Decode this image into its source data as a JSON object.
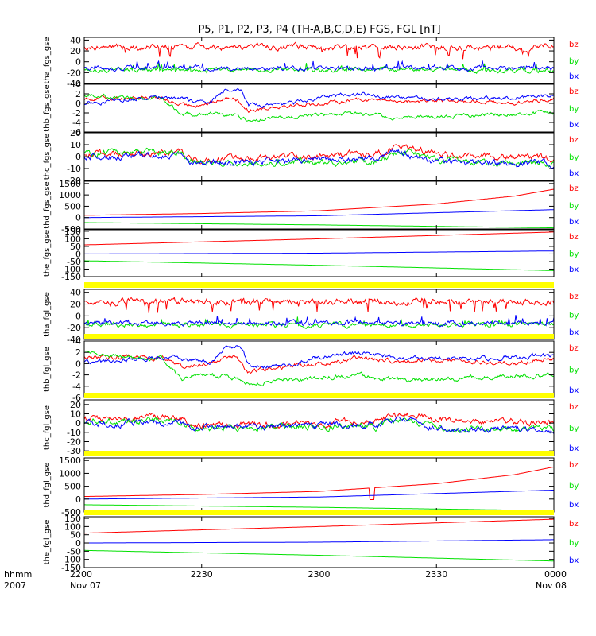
{
  "title": "P5, P1, P2, P3, P4 (TH-A,B,C,D,E) FGS, FGL [nT]",
  "colors": {
    "bx": "#0000ff",
    "by": "#00e000",
    "bz": "#ff0000",
    "gap": "#ffff00",
    "axis": "#000000"
  },
  "time_axis": {
    "label_line1": "hhmm",
    "label_line2": "2007",
    "ticks": [
      {
        "value": 0,
        "line1": "2200",
        "line2": "Nov 07"
      },
      {
        "value": 30,
        "line1": "2230",
        "line2": ""
      },
      {
        "value": 60,
        "line1": "2300",
        "line2": ""
      },
      {
        "value": 90,
        "line1": "2330",
        "line2": ""
      },
      {
        "value": 120,
        "line1": "0000",
        "line2": "Nov 08"
      }
    ],
    "range_minutes": [
      0,
      120
    ]
  },
  "chart_data": [
    {
      "type": "line",
      "ylabel": "tha_fgs_gse",
      "ylim": [
        -40,
        45
      ],
      "yticks": [
        -40,
        -20,
        0,
        20,
        40
      ],
      "legend": [
        "bz",
        "by",
        "bx"
      ],
      "gap_before": false,
      "series": [
        {
          "name": "bz",
          "level": 27,
          "noise": 4,
          "var": "burst"
        },
        {
          "name": "by",
          "level": -15,
          "noise": 3,
          "var": "spiky"
        },
        {
          "name": "bx",
          "level": -12,
          "noise": 3,
          "var": "spiky"
        }
      ]
    },
    {
      "type": "line",
      "ylabel": "thb_fgs_gse",
      "ylim": [
        -6,
        4
      ],
      "yticks": [
        -6,
        -4,
        -2,
        0,
        2,
        4
      ],
      "legend": [
        "bz",
        "by",
        "bx"
      ],
      "gap_before": false,
      "series": [
        {
          "name": "bz",
          "knots": [
            [
              0,
              1
            ],
            [
              15,
              1.3
            ],
            [
              20,
              1
            ],
            [
              25,
              -0.5
            ],
            [
              32,
              0
            ],
            [
              38,
              1.5
            ],
            [
              42,
              -1.5
            ],
            [
              50,
              -0.5
            ],
            [
              62,
              0
            ],
            [
              70,
              1
            ],
            [
              80,
              0.5
            ],
            [
              100,
              0.5
            ],
            [
              110,
              0
            ],
            [
              120,
              1
            ]
          ],
          "noise": 0.3,
          "var": "none"
        },
        {
          "name": "by",
          "knots": [
            [
              0,
              2
            ],
            [
              10,
              1.2
            ],
            [
              20,
              1
            ],
            [
              25,
              -2.5
            ],
            [
              32,
              -2
            ],
            [
              38,
              -2.5
            ],
            [
              42,
              -3.5
            ],
            [
              50,
              -3
            ],
            [
              62,
              -2.5
            ],
            [
              70,
              -2
            ],
            [
              80,
              -3
            ],
            [
              100,
              -2.5
            ],
            [
              120,
              -2
            ]
          ],
          "noise": 0.3,
          "var": "none"
        },
        {
          "name": "bx",
          "knots": [
            [
              0,
              0
            ],
            [
              15,
              1
            ],
            [
              20,
              1.2
            ],
            [
              25,
              1
            ],
            [
              32,
              0
            ],
            [
              36,
              3
            ],
            [
              40,
              3
            ],
            [
              42,
              -0.5
            ],
            [
              50,
              -0.5
            ],
            [
              62,
              1.5
            ],
            [
              70,
              2
            ],
            [
              80,
              1
            ],
            [
              100,
              1
            ],
            [
              120,
              1.5
            ]
          ],
          "noise": 0.3,
          "var": "none"
        }
      ]
    },
    {
      "type": "line",
      "ylabel": "thc_fgs_gse",
      "ylim": [
        -20,
        20
      ],
      "yticks": [
        -20,
        -10,
        0,
        10,
        20
      ],
      "legend": [
        "bz",
        "by",
        "bx"
      ],
      "gap_before": false,
      "series": [
        {
          "name": "bz",
          "knots": [
            [
              0,
              2
            ],
            [
              25,
              3
            ],
            [
              27,
              -3
            ],
            [
              50,
              0
            ],
            [
              75,
              2
            ],
            [
              80,
              7
            ],
            [
              85,
              7
            ],
            [
              90,
              2
            ],
            [
              120,
              -2
            ]
          ],
          "noise": 2,
          "var": "none"
        },
        {
          "name": "by",
          "knots": [
            [
              0,
              3
            ],
            [
              25,
              4
            ],
            [
              27,
              -5
            ],
            [
              50,
              -4
            ],
            [
              75,
              -4
            ],
            [
              80,
              5
            ],
            [
              90,
              -3
            ],
            [
              120,
              -7
            ]
          ],
          "noise": 2,
          "var": "none"
        },
        {
          "name": "bx",
          "knots": [
            [
              0,
              0
            ],
            [
              25,
              0
            ],
            [
              27,
              -5
            ],
            [
              50,
              -3
            ],
            [
              75,
              -2
            ],
            [
              80,
              5
            ],
            [
              90,
              -5
            ],
            [
              120,
              -6
            ]
          ],
          "noise": 2,
          "var": "none"
        }
      ]
    },
    {
      "type": "line",
      "ylabel": "thd_fgs_gse",
      "ylim": [
        -500,
        1600
      ],
      "yticks": [
        -500,
        0,
        500,
        1000,
        1500
      ],
      "legend": [
        "bz",
        "by",
        "bx"
      ],
      "gap_before": false,
      "series": [
        {
          "name": "bz",
          "knots": [
            [
              0,
              100
            ],
            [
              30,
              180
            ],
            [
              60,
              300
            ],
            [
              90,
              600
            ],
            [
              110,
              950
            ],
            [
              120,
              1250
            ]
          ],
          "noise": 0,
          "var": "none"
        },
        {
          "name": "by",
          "knots": [
            [
              0,
              -220
            ],
            [
              60,
              -320
            ],
            [
              120,
              -450
            ]
          ],
          "noise": 0,
          "var": "none"
        },
        {
          "name": "bx",
          "knots": [
            [
              0,
              0
            ],
            [
              60,
              80
            ],
            [
              120,
              350
            ]
          ],
          "noise": 0,
          "var": "none"
        }
      ]
    },
    {
      "type": "line",
      "ylabel": "the_fgs_gse",
      "ylim": [
        -150,
        160
      ],
      "yticks": [
        -150,
        -100,
        -50,
        0,
        50,
        100,
        150
      ],
      "legend": [
        "bz",
        "by",
        "bx"
      ],
      "gap_before": false,
      "series": [
        {
          "name": "bz",
          "knots": [
            [
              0,
              60
            ],
            [
              60,
              100
            ],
            [
              120,
              145
            ]
          ],
          "noise": 0,
          "var": "none"
        },
        {
          "name": "by",
          "knots": [
            [
              0,
              -45
            ],
            [
              60,
              -75
            ],
            [
              120,
              -110
            ]
          ],
          "noise": 0,
          "var": "none"
        },
        {
          "name": "bx",
          "knots": [
            [
              0,
              0
            ],
            [
              60,
              5
            ],
            [
              120,
              20
            ]
          ],
          "noise": 0,
          "var": "none"
        }
      ]
    },
    {
      "type": "line",
      "ylabel": "tha_fgl_gse",
      "ylim": [
        -40,
        45
      ],
      "yticks": [
        -40,
        -20,
        0,
        20,
        40
      ],
      "legend": [
        "bz",
        "by",
        "bx"
      ],
      "gap_before": true,
      "series": [
        {
          "name": "bz",
          "level": 24,
          "noise": 4,
          "var": "burst"
        },
        {
          "name": "by",
          "level": -15,
          "noise": 3,
          "var": "spiky"
        },
        {
          "name": "bx",
          "level": -12,
          "noise": 3,
          "var": "spiky"
        }
      ]
    },
    {
      "type": "line",
      "ylabel": "thb_fgl_gse",
      "ylim": [
        -6,
        4
      ],
      "yticks": [
        -6,
        -4,
        -2,
        0,
        2,
        4
      ],
      "legend": [
        "bz",
        "by",
        "bx"
      ],
      "gap_before": true,
      "series": [
        {
          "name": "bz",
          "knots": [
            [
              0,
              1
            ],
            [
              15,
              1.3
            ],
            [
              20,
              1
            ],
            [
              25,
              -0.5
            ],
            [
              32,
              0
            ],
            [
              38,
              1.5
            ],
            [
              42,
              -1.5
            ],
            [
              50,
              -0.5
            ],
            [
              62,
              0
            ],
            [
              70,
              1
            ],
            [
              80,
              0.5
            ],
            [
              100,
              0.5
            ],
            [
              110,
              0
            ],
            [
              120,
              1
            ]
          ],
          "noise": 0.3,
          "var": "none"
        },
        {
          "name": "by",
          "knots": [
            [
              0,
              2
            ],
            [
              10,
              1.2
            ],
            [
              20,
              1
            ],
            [
              25,
              -2.5
            ],
            [
              32,
              -2
            ],
            [
              38,
              -2.5
            ],
            [
              42,
              -3.5
            ],
            [
              50,
              -3
            ],
            [
              62,
              -2.5
            ],
            [
              70,
              -2
            ],
            [
              80,
              -3
            ],
            [
              100,
              -2.5
            ],
            [
              120,
              -2
            ]
          ],
          "noise": 0.3,
          "var": "none"
        },
        {
          "name": "bx",
          "knots": [
            [
              0,
              0
            ],
            [
              15,
              1
            ],
            [
              20,
              1.2
            ],
            [
              25,
              1
            ],
            [
              32,
              0
            ],
            [
              36,
              3
            ],
            [
              40,
              3
            ],
            [
              42,
              -0.5
            ],
            [
              50,
              -0.5
            ],
            [
              62,
              1.5
            ],
            [
              70,
              2
            ],
            [
              80,
              1
            ],
            [
              100,
              1
            ],
            [
              120,
              1.5
            ]
          ],
          "noise": 0.3,
          "var": "none"
        }
      ]
    },
    {
      "type": "line",
      "ylabel": "thc_fgl_gse",
      "ylim": [
        -35,
        25
      ],
      "yticks": [
        -30,
        -20,
        -10,
        0,
        10,
        20
      ],
      "legend": [
        "bz",
        "by",
        "bx"
      ],
      "gap_before": true,
      "series": [
        {
          "name": "bz",
          "knots": [
            [
              0,
              5
            ],
            [
              25,
              6
            ],
            [
              27,
              -2
            ],
            [
              50,
              -2
            ],
            [
              75,
              3
            ],
            [
              80,
              8
            ],
            [
              85,
              8
            ],
            [
              90,
              3
            ],
            [
              120,
              0
            ]
          ],
          "noise": 2.5,
          "var": "none"
        },
        {
          "name": "by",
          "knots": [
            [
              0,
              2
            ],
            [
              25,
              3
            ],
            [
              27,
              -5
            ],
            [
              50,
              -4
            ],
            [
              75,
              -4
            ],
            [
              80,
              5
            ],
            [
              90,
              -6
            ],
            [
              120,
              -7
            ]
          ],
          "noise": 2.5,
          "var": "none"
        },
        {
          "name": "bx",
          "knots": [
            [
              0,
              0
            ],
            [
              25,
              0
            ],
            [
              27,
              -5
            ],
            [
              50,
              -3
            ],
            [
              75,
              -2
            ],
            [
              80,
              5
            ],
            [
              90,
              -5
            ],
            [
              120,
              -8
            ]
          ],
          "noise": 2.5,
          "var": "none"
        }
      ]
    },
    {
      "type": "line",
      "ylabel": "thd_fgl_gse",
      "ylim": [
        -500,
        1600
      ],
      "yticks": [
        -500,
        0,
        500,
        1000,
        1500
      ],
      "legend": [
        "bz",
        "by",
        "bx"
      ],
      "gap_before": true,
      "series": [
        {
          "name": "bz",
          "knots": [
            [
              0,
              100
            ],
            [
              30,
              180
            ],
            [
              60,
              300
            ],
            [
              90,
              600
            ],
            [
              110,
              950
            ],
            [
              120,
              1250
            ]
          ],
          "noise": 0,
          "var": "none",
          "dip": [
            73,
            74,
            -20
          ]
        },
        {
          "name": "by",
          "knots": [
            [
              0,
              -220
            ],
            [
              60,
              -320
            ],
            [
              120,
              -450
            ]
          ],
          "noise": 0,
          "var": "none"
        },
        {
          "name": "bx",
          "knots": [
            [
              0,
              0
            ],
            [
              60,
              80
            ],
            [
              120,
              350
            ]
          ],
          "noise": 0,
          "var": "none"
        }
      ]
    },
    {
      "type": "line",
      "ylabel": "the_fgl_gse",
      "ylim": [
        -150,
        160
      ],
      "yticks": [
        -150,
        -100,
        -50,
        0,
        50,
        100,
        150
      ],
      "legend": [
        "bz",
        "by",
        "bx"
      ],
      "gap_before": true,
      "series": [
        {
          "name": "bz",
          "knots": [
            [
              0,
              60
            ],
            [
              60,
              100
            ],
            [
              120,
              145
            ]
          ],
          "noise": 0,
          "var": "none"
        },
        {
          "name": "by",
          "knots": [
            [
              0,
              -45
            ],
            [
              60,
              -75
            ],
            [
              120,
              -110
            ]
          ],
          "noise": 0,
          "var": "none"
        },
        {
          "name": "bx",
          "knots": [
            [
              0,
              0
            ],
            [
              60,
              5
            ],
            [
              120,
              20
            ]
          ],
          "noise": 0,
          "var": "none"
        }
      ]
    }
  ]
}
